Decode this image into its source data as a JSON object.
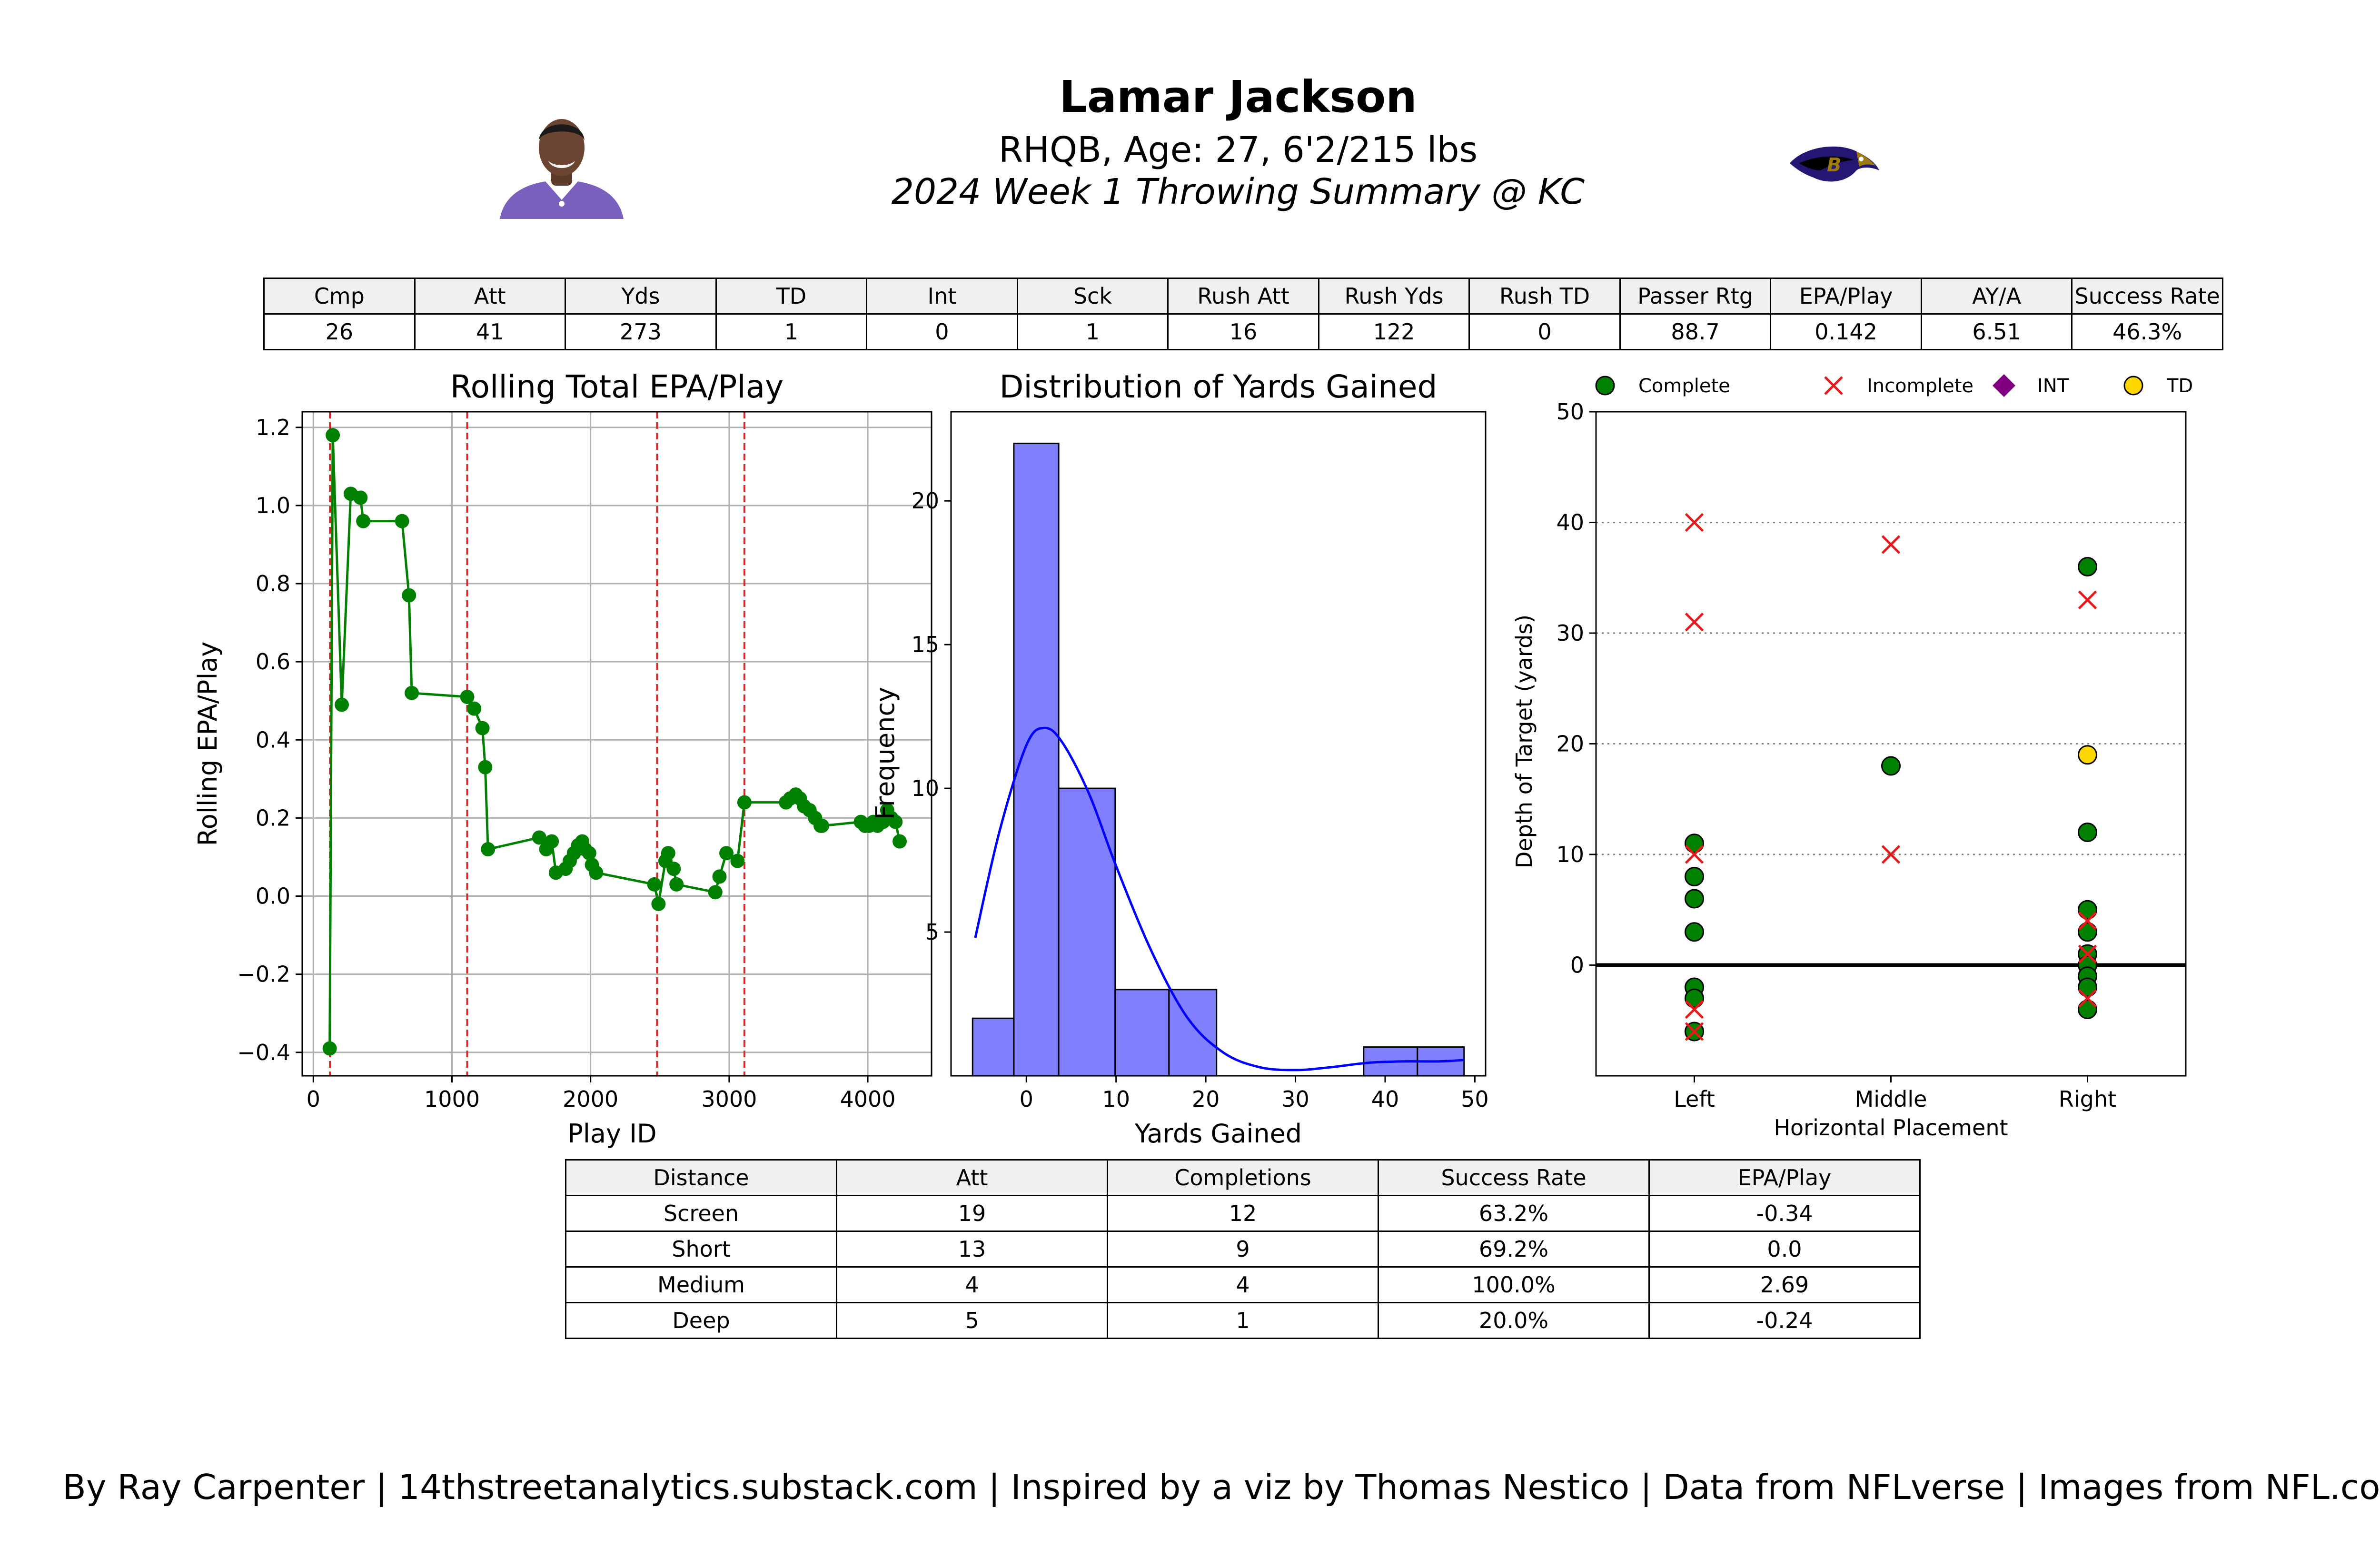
{
  "header": {
    "name": "Lamar Jackson",
    "bio": "RHQB, Age: 27, 6'2/215 lbs",
    "summary": "2024 Week 1 Throwing Summary @ KC",
    "colors": {
      "ravens_purple": "#241773",
      "player_jersey": "#7b5fbf",
      "ravens_gold": "#9e7c0c"
    }
  },
  "stats_table": {
    "headers": [
      "Cmp",
      "Att",
      "Yds",
      "TD",
      "Int",
      "Sck",
      "Rush Att",
      "Rush Yds",
      "Rush TD",
      "Passer Rtg",
      "EPA/Play",
      "AY/A",
      "Success Rate"
    ],
    "values": [
      "26",
      "41",
      "273",
      "1",
      "0",
      "1",
      "16",
      "122",
      "0",
      "88.7",
      "0.142",
      "6.51",
      "46.3%"
    ]
  },
  "distance_table": {
    "headers": [
      "Distance",
      "Att",
      "Completions",
      "Success Rate",
      "EPA/Play"
    ],
    "rows": [
      [
        "Screen",
        "19",
        "12",
        "63.2%",
        "-0.34"
      ],
      [
        "Short",
        "13",
        "9",
        "69.2%",
        "0.0"
      ],
      [
        "Medium",
        "4",
        "4",
        "100.0%",
        "2.69"
      ],
      [
        "Deep",
        "5",
        "1",
        "20.0%",
        "-0.24"
      ]
    ]
  },
  "chart_data": [
    {
      "type": "line",
      "title": "Rolling Total EPA/Play",
      "xlabel": "Play ID",
      "ylabel": "Rolling EPA/Play",
      "xlim": [
        -80,
        4460
      ],
      "ylim": [
        -0.46,
        1.24
      ],
      "xticks": [
        0,
        1000,
        2000,
        3000,
        4000
      ],
      "yticks": [
        -0.4,
        -0.2,
        0.0,
        0.2,
        0.4,
        0.6,
        0.8,
        1.0,
        1.2
      ],
      "ytick_labels": [
        "−0.4",
        "−0.2",
        "0.0",
        "0.2",
        "0.4",
        "0.6",
        "0.8",
        "1.0",
        "1.2"
      ],
      "grid": true,
      "line_color": "#008000",
      "quarter_lines": [
        120,
        1110,
        2480,
        3110
      ],
      "quarter_line_color": "#d62728",
      "x": [
        118,
        140,
        205,
        270,
        340,
        360,
        640,
        690,
        710,
        1110,
        1160,
        1220,
        1240,
        1260,
        1630,
        1680,
        1720,
        1750,
        1820,
        1850,
        1880,
        1910,
        1940,
        1960,
        1990,
        2010,
        2040,
        2460,
        2490,
        2540,
        2560,
        2600,
        2620,
        2900,
        2930,
        2980,
        3060,
        3110,
        3410,
        3440,
        3480,
        3510,
        3540,
        3580,
        3620,
        3660,
        3670,
        3950,
        3980,
        4010,
        4040,
        4070,
        4110,
        4140,
        4170,
        4200,
        4230
      ],
      "y": [
        -0.39,
        1.18,
        0.49,
        1.03,
        1.02,
        0.96,
        0.96,
        0.77,
        0.52,
        0.51,
        0.48,
        0.43,
        0.33,
        0.12,
        0.15,
        0.12,
        0.14,
        0.06,
        0.07,
        0.09,
        0.11,
        0.13,
        0.14,
        0.12,
        0.11,
        0.08,
        0.06,
        0.03,
        -0.02,
        0.09,
        0.11,
        0.07,
        0.03,
        0.01,
        0.05,
        0.11,
        0.09,
        0.24,
        0.24,
        0.25,
        0.26,
        0.25,
        0.23,
        0.22,
        0.2,
        0.18,
        0.18,
        0.19,
        0.18,
        0.18,
        0.19,
        0.18,
        0.19,
        0.22,
        0.2,
        0.19,
        0.14
      ]
    },
    {
      "type": "bar",
      "title": "Distribution of Yards Gained",
      "xlabel": "Yards Gained",
      "ylabel": "Frequency",
      "xlim": [
        -8.4,
        51.2
      ],
      "ylim": [
        0,
        23.1
      ],
      "xticks": [
        0,
        10,
        20,
        30,
        40,
        50
      ],
      "yticks": [
        5,
        10,
        15,
        20
      ],
      "bar_color": "#8080ff",
      "kde_color": "#0000ff",
      "bins": [
        [
          -6,
          -1.4,
          2
        ],
        [
          -1.4,
          3.6,
          22
        ],
        [
          3.6,
          9.9,
          10
        ],
        [
          9.9,
          15.9,
          3
        ],
        [
          15.9,
          21.2,
          3
        ],
        [
          37.6,
          43.6,
          1
        ],
        [
          43.6,
          48.8,
          1
        ]
      ],
      "kde": [
        [
          -5.7,
          4.8
        ],
        [
          -3,
          8.5
        ],
        [
          0,
          11.5
        ],
        [
          2,
          12.1
        ],
        [
          4,
          11.6
        ],
        [
          7,
          9.8
        ],
        [
          10,
          7.3
        ],
        [
          14,
          4.3
        ],
        [
          18,
          2.0
        ],
        [
          22,
          0.8
        ],
        [
          26,
          0.3
        ],
        [
          30,
          0.2
        ],
        [
          34,
          0.3
        ],
        [
          38,
          0.45
        ],
        [
          42,
          0.5
        ],
        [
          46,
          0.5
        ],
        [
          48.8,
          0.55
        ]
      ]
    },
    {
      "type": "scatter",
      "xlabel": "Horizontal Placement",
      "ylabel": "Depth of Target (yards)",
      "categories": [
        "Left",
        "Middle",
        "Right"
      ],
      "xlim": [
        -0.5,
        2.5
      ],
      "ylim": [
        -10,
        50
      ],
      "yticks": [
        0,
        10,
        20,
        30,
        40,
        50
      ],
      "grid": "dotted-horizontal",
      "legend": [
        "Complete",
        "Incomplete",
        "INT",
        "TD"
      ],
      "legend_placement": "top",
      "colors": {
        "complete": "#008000",
        "incomplete": "#e41a1c",
        "int": "#800080",
        "td": "#ffd700"
      },
      "points": [
        {
          "x": 0,
          "y": 11,
          "result": "complete"
        },
        {
          "x": 0,
          "y": 8,
          "result": "complete"
        },
        {
          "x": 0,
          "y": 6,
          "result": "complete"
        },
        {
          "x": 0,
          "y": 3,
          "result": "complete"
        },
        {
          "x": 0,
          "y": -2,
          "result": "complete"
        },
        {
          "x": 0,
          "y": -3,
          "result": "complete"
        },
        {
          "x": 0,
          "y": -6,
          "result": "complete"
        },
        {
          "x": 0,
          "y": 40,
          "result": "incomplete"
        },
        {
          "x": 0,
          "y": 31,
          "result": "incomplete"
        },
        {
          "x": 0,
          "y": 10,
          "result": "incomplete"
        },
        {
          "x": 0,
          "y": -4,
          "result": "incomplete"
        },
        {
          "x": 0,
          "y": -6,
          "result": "incomplete"
        },
        {
          "x": 1,
          "y": 18,
          "result": "complete"
        },
        {
          "x": 1,
          "y": 38,
          "result": "incomplete"
        },
        {
          "x": 1,
          "y": 10,
          "result": "incomplete"
        },
        {
          "x": 2,
          "y": 36,
          "result": "complete"
        },
        {
          "x": 2,
          "y": 12,
          "result": "complete"
        },
        {
          "x": 2,
          "y": 5,
          "result": "complete"
        },
        {
          "x": 2,
          "y": 3,
          "result": "complete"
        },
        {
          "x": 2,
          "y": 1,
          "result": "complete"
        },
        {
          "x": 2,
          "y": 0,
          "result": "complete"
        },
        {
          "x": 2,
          "y": -1,
          "result": "complete"
        },
        {
          "x": 2,
          "y": -2,
          "result": "complete"
        },
        {
          "x": 2,
          "y": -4,
          "result": "complete"
        },
        {
          "x": 2,
          "y": 19,
          "result": "td"
        },
        {
          "x": 2,
          "y": 33,
          "result": "incomplete"
        },
        {
          "x": 2,
          "y": 4,
          "result": "incomplete"
        },
        {
          "x": 2,
          "y": 1,
          "result": "incomplete"
        },
        {
          "x": 2,
          "y": -3,
          "result": "incomplete"
        }
      ]
    }
  ],
  "footer": "By Ray Carpenter | 14thstreetanalytics.substack.com | Inspired by a viz by Thomas Nestico | Data from NFLverse | Images from NFL.com"
}
